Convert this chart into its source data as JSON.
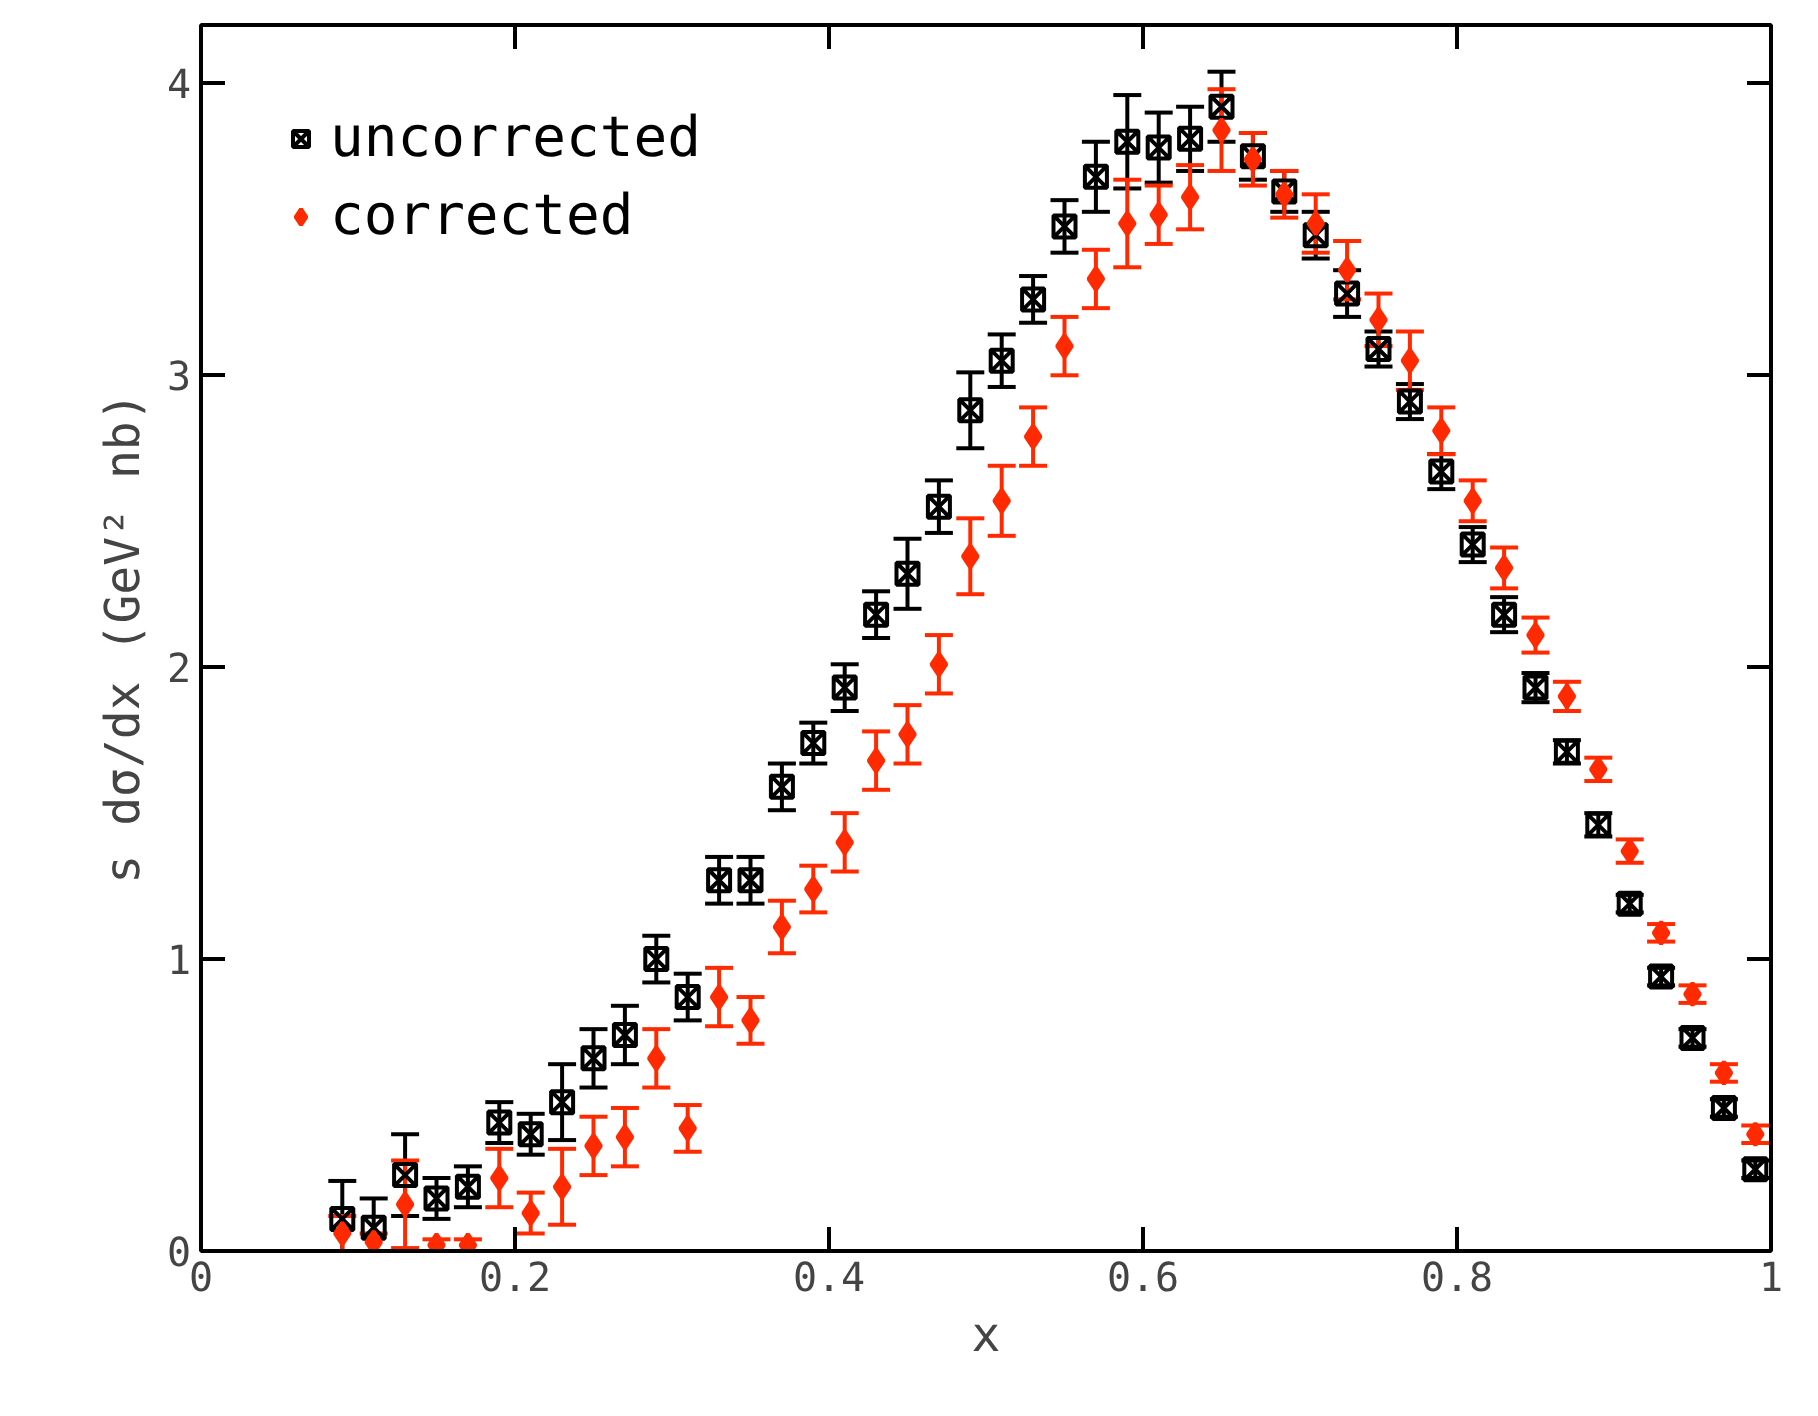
{
  "chart_data": {
    "type": "scatter",
    "xlabel": "x",
    "ylabel": "s dσ/dx (GeV² nb)",
    "x": [
      0.09,
      0.11,
      0.13,
      0.15,
      0.17,
      0.19,
      0.21,
      0.23,
      0.25,
      0.27,
      0.29,
      0.31,
      0.33,
      0.35,
      0.37,
      0.39,
      0.41,
      0.43,
      0.45,
      0.47,
      0.49,
      0.51,
      0.53,
      0.55,
      0.57,
      0.59,
      0.61,
      0.63,
      0.65,
      0.67,
      0.69,
      0.71,
      0.73,
      0.75,
      0.77,
      0.79,
      0.81,
      0.83,
      0.85,
      0.87,
      0.89,
      0.91,
      0.93,
      0.95,
      0.97,
      0.99
    ],
    "xlim": [
      0,
      1
    ],
    "ylim": [
      0,
      4.2
    ],
    "xticks": [
      0,
      0.2,
      0.4,
      0.6,
      0.8,
      1
    ],
    "yticks": [
      0,
      1,
      2,
      3,
      4
    ],
    "grid": false,
    "legend": "top left",
    "series": [
      {
        "name": "uncorrected",
        "color": "#000000",
        "marker": "cross",
        "values": [
          0.11,
          0.08,
          0.26,
          0.18,
          0.22,
          0.44,
          0.4,
          0.51,
          0.66,
          0.74,
          1.0,
          0.87,
          1.27,
          1.27,
          1.59,
          1.74,
          1.93,
          2.18,
          2.32,
          2.55,
          2.88,
          3.05,
          3.26,
          3.51,
          3.68,
          3.8,
          3.78,
          3.81,
          3.92,
          3.75,
          3.63,
          3.48,
          3.28,
          3.09,
          2.91,
          2.67,
          2.42,
          2.18,
          1.93,
          1.71,
          1.46,
          1.19,
          0.94,
          0.73,
          0.49,
          0.28
        ],
        "errors": [
          0.13,
          0.1,
          0.14,
          0.07,
          0.07,
          0.07,
          0.07,
          0.13,
          0.1,
          0.1,
          0.08,
          0.08,
          0.08,
          0.08,
          0.08,
          0.07,
          0.08,
          0.08,
          0.12,
          0.09,
          0.13,
          0.09,
          0.08,
          0.09,
          0.12,
          0.16,
          0.12,
          0.11,
          0.12,
          0.08,
          0.07,
          0.08,
          0.08,
          0.06,
          0.06,
          0.06,
          0.06,
          0.06,
          0.05,
          0.04,
          0.04,
          0.03,
          0.03,
          0.03,
          0.03,
          0.03
        ]
      },
      {
        "name": "corrected",
        "color": "#ff2a00",
        "marker": "diamond",
        "values": [
          0.06,
          0.03,
          0.16,
          0.02,
          0.02,
          0.25,
          0.13,
          0.22,
          0.36,
          0.39,
          0.66,
          0.42,
          0.87,
          0.79,
          1.11,
          1.24,
          1.4,
          1.68,
          1.77,
          2.01,
          2.38,
          2.57,
          2.79,
          3.1,
          3.33,
          3.52,
          3.55,
          3.61,
          3.84,
          3.74,
          3.62,
          3.52,
          3.36,
          3.19,
          3.05,
          2.81,
          2.57,
          2.34,
          2.11,
          1.9,
          1.65,
          1.37,
          1.09,
          0.88,
          0.61,
          0.4
        ],
        "errors": [
          0.06,
          0.03,
          0.15,
          0.02,
          0.02,
          0.1,
          0.07,
          0.13,
          0.1,
          0.1,
          0.1,
          0.08,
          0.1,
          0.08,
          0.09,
          0.08,
          0.1,
          0.1,
          0.1,
          0.1,
          0.13,
          0.12,
          0.1,
          0.1,
          0.1,
          0.15,
          0.1,
          0.11,
          0.14,
          0.09,
          0.08,
          0.1,
          0.1,
          0.09,
          0.1,
          0.08,
          0.07,
          0.07,
          0.06,
          0.05,
          0.04,
          0.04,
          0.03,
          0.03,
          0.03,
          0.03
        ]
      }
    ]
  }
}
